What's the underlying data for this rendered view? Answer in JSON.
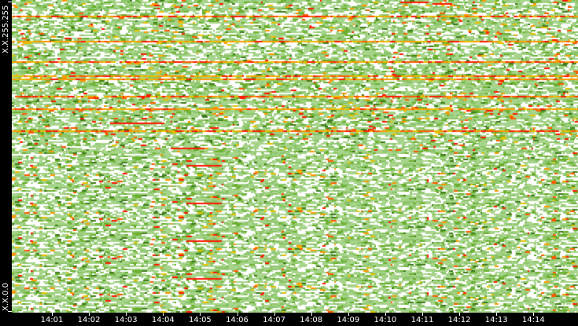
{
  "chart_data": {
    "type": "heatmap",
    "title": "",
    "xlabel": "",
    "ylabel": "",
    "y_tick_labels": [
      "X.X.255.255",
      "X.X.0.0"
    ],
    "x_tick_labels": [
      "14:01",
      "14:02",
      "14:03",
      "14:04",
      "14:05",
      "14:06",
      "14:07",
      "14:08",
      "14:09",
      "14:10",
      "14:11",
      "14:12",
      "14:13",
      "14:14"
    ],
    "color_scale": [
      "#ffffff",
      "#a6d48a",
      "#8cc56a",
      "#6aaf2e",
      "#3f7d1c",
      "#e8c000",
      "#ff9900",
      "#ff5a00",
      "#ff1a00"
    ],
    "grid": false,
    "legend": "none"
  }
}
